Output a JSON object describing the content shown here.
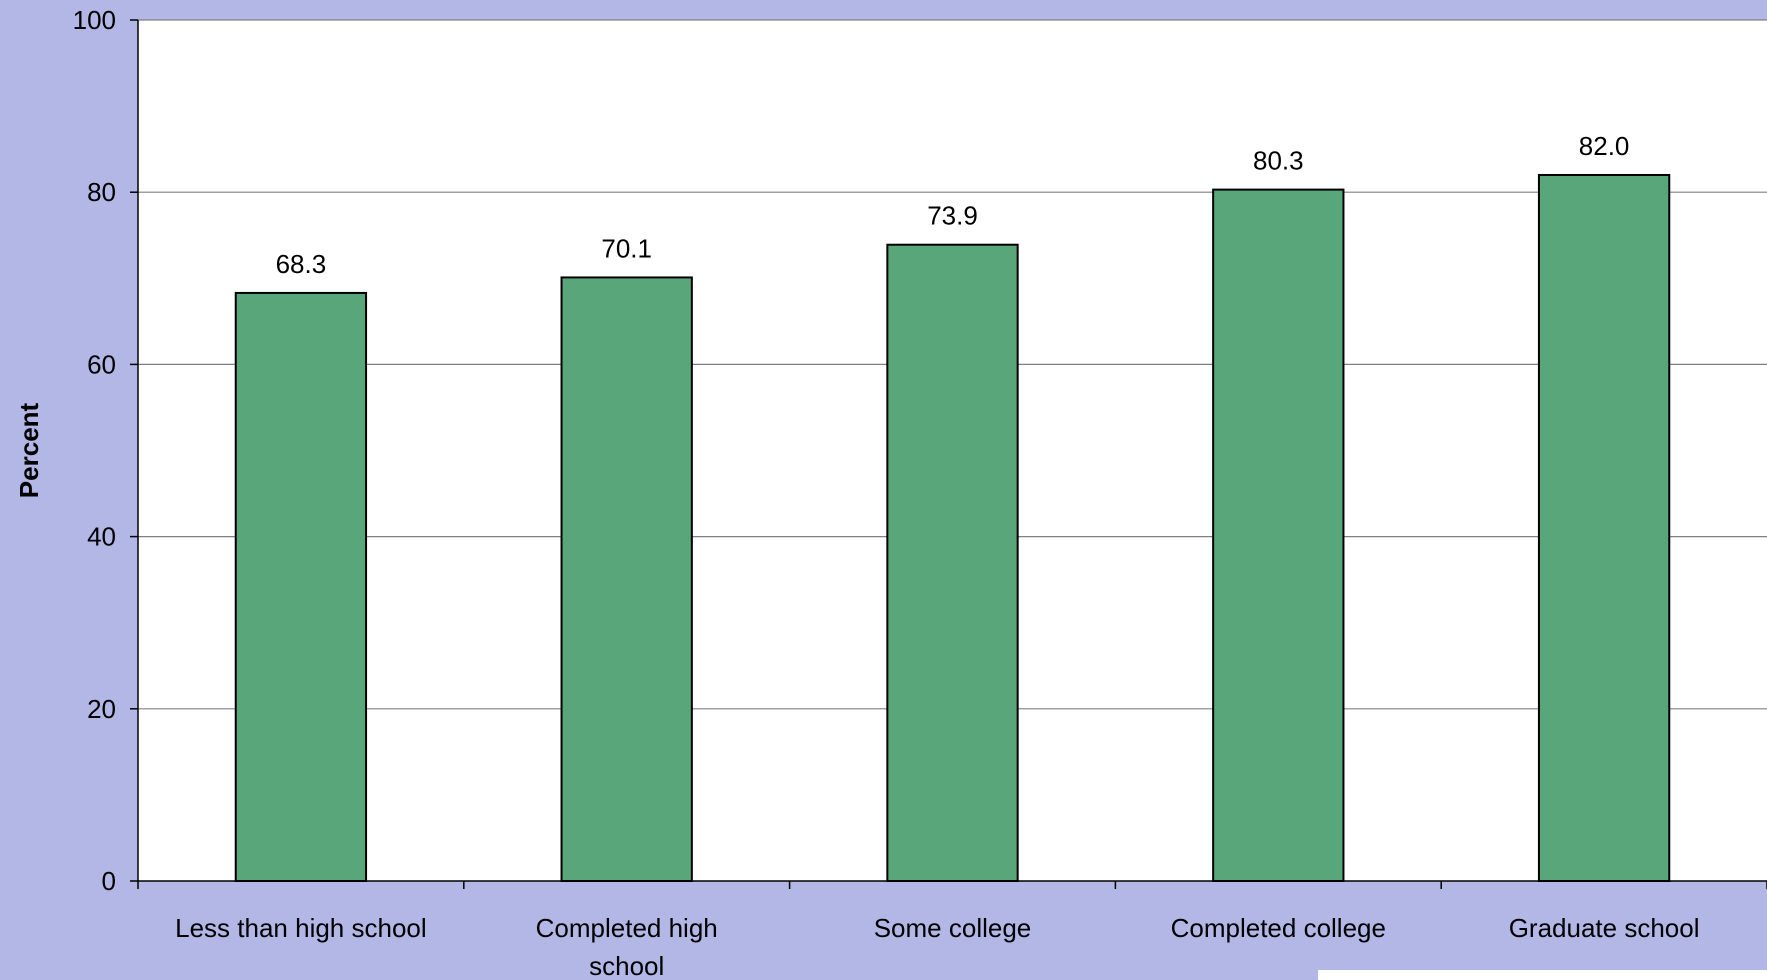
{
  "chart_data": {
    "type": "bar",
    "title": "",
    "xlabel": "",
    "ylabel": "Percent",
    "ylim": [
      0,
      100
    ],
    "yticks": [
      0,
      20,
      40,
      60,
      80,
      100
    ],
    "grid": true,
    "categories": [
      "Less than high school",
      "Completed high school",
      "Some college",
      "Completed college",
      "Graduate school"
    ],
    "category_lines": [
      [
        "Less than high school"
      ],
      [
        "Completed high",
        "school"
      ],
      [
        "Some college"
      ],
      [
        "Completed college"
      ],
      [
        "Graduate school"
      ]
    ],
    "values": [
      68.3,
      70.1,
      73.9,
      80.3,
      82.0
    ],
    "value_labels": [
      "68.3",
      "70.1",
      "73.9",
      "80.3",
      "82.0"
    ],
    "colors": {
      "bar": "#58a67a",
      "plot_background": "#ffffff",
      "page_background": "#b3b7e6"
    }
  }
}
